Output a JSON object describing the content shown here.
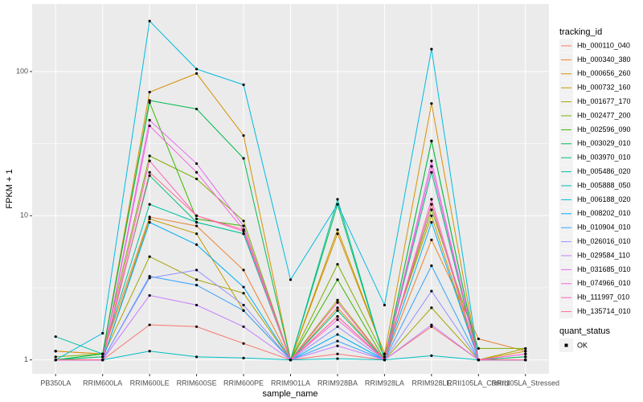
{
  "chart_data": {
    "type": "line",
    "x_label": "sample_name",
    "y_label": "FPKM + 1",
    "log_scale": true,
    "grid": true,
    "legend_title": "tracking_id",
    "point_legend_title": "quant_status",
    "point_legend_label": "OK",
    "point_color": "#000000",
    "categories": [
      "PB350LA",
      "RRIM600LA",
      "RRIM600LE",
      "RRIM600SE",
      "RRIM600PE",
      "RRIM901LA",
      "RRIM928BA",
      "RRIM928LA",
      "RRIM928LE",
      "RRII105LA_Control",
      "RRII105LA_Stressed"
    ],
    "ylim": [
      0.8,
      294
    ],
    "yticks": [
      1,
      10,
      100
    ],
    "series": [
      {
        "name": "Hb_000110_040",
        "color": "#F8766D",
        "values": [
          1,
          1,
          1.75,
          1.7,
          1.3,
          1,
          1.1,
          1,
          1.7,
          1,
          1
        ]
      },
      {
        "name": "Hb_000340_380",
        "color": "#EA8331",
        "values": [
          1.15,
          1.1,
          9.8,
          8.5,
          4.2,
          1,
          2.3,
          1,
          6.8,
          1.4,
          1.15
        ]
      },
      {
        "name": "Hb_000656_260",
        "color": "#D89000",
        "values": [
          1.15,
          1.1,
          72,
          97,
          36,
          1,
          7.5,
          1.1,
          60,
          1,
          1.15
        ]
      },
      {
        "name": "Hb_000732_160",
        "color": "#C09B00",
        "values": [
          1,
          1,
          9.5,
          7.5,
          2.2,
          1,
          8,
          1.1,
          10,
          1,
          1.05
        ]
      },
      {
        "name": "Hb_001677_170",
        "color": "#A3A500",
        "values": [
          1,
          1.05,
          5.2,
          3.6,
          2.9,
          1,
          2.6,
          1,
          2.3,
          1,
          1.2
        ]
      },
      {
        "name": "Hb_002477_200",
        "color": "#7CAE00",
        "values": [
          1.05,
          1.1,
          26,
          18,
          9.2,
          1,
          4.6,
          1.05,
          11,
          1.2,
          1.2
        ]
      },
      {
        "name": "Hb_002596_090",
        "color": "#39B600",
        "values": [
          1,
          1.1,
          61,
          9.5,
          8.5,
          1,
          3.6,
          1,
          33,
          1,
          1
        ]
      },
      {
        "name": "Hb_003029_010",
        "color": "#00BB4E",
        "values": [
          1,
          1.1,
          63,
          55,
          25,
          1,
          12,
          1,
          33,
          1,
          1
        ]
      },
      {
        "name": "Hb_003970_010",
        "color": "#00BF7D",
        "values": [
          1,
          1.05,
          19,
          9,
          7.5,
          1,
          2.2,
          1,
          20,
          1,
          1.05
        ]
      },
      {
        "name": "Hb_005486_020",
        "color": "#00C1A3",
        "values": [
          1.45,
          1.1,
          12,
          9,
          7.5,
          1,
          13,
          1,
          12,
          1,
          1
        ]
      },
      {
        "name": "Hb_005888_050",
        "color": "#00BFC4",
        "values": [
          1,
          1,
          1.15,
          1.05,
          1.03,
          1,
          1.02,
          1,
          1.07,
          1,
          1
        ]
      },
      {
        "name": "Hb_006188_020",
        "color": "#00BAE0",
        "values": [
          1,
          1.53,
          224,
          104,
          81,
          3.6,
          12,
          2.4,
          143,
          1,
          1
        ]
      },
      {
        "name": "Hb_008202_010",
        "color": "#00B0F6",
        "values": [
          1,
          1,
          9,
          6.3,
          3.2,
          1,
          1.5,
          1,
          9,
          1,
          1
        ]
      },
      {
        "name": "Hb_010904_010",
        "color": "#35A2FF",
        "values": [
          1,
          1,
          3.8,
          3.3,
          2.2,
          1,
          1.35,
          1,
          4.5,
          1,
          1
        ]
      },
      {
        "name": "Hb_026016_010",
        "color": "#9590FF",
        "values": [
          1,
          1,
          3.7,
          4.2,
          2.4,
          1,
          1.7,
          1,
          3,
          1,
          1
        ]
      },
      {
        "name": "Hb_029584_110",
        "color": "#C77CFF",
        "values": [
          1,
          1,
          2.8,
          2.4,
          1.7,
          1,
          1.25,
          1,
          1.75,
          1,
          1
        ]
      },
      {
        "name": "Hb_031685_010",
        "color": "#E76BF3",
        "values": [
          1,
          1,
          46,
          23,
          8.5,
          1,
          2,
          1,
          24,
          1,
          1.1
        ]
      },
      {
        "name": "Hb_074966_010",
        "color": "#FA62DB",
        "values": [
          1,
          1,
          42,
          20,
          8,
          1,
          1.9,
          1,
          22,
          1,
          1.1
        ]
      },
      {
        "name": "Hb_111997_010",
        "color": "#FF62BC",
        "values": [
          1,
          1,
          24,
          10,
          7.8,
          1,
          2.5,
          1,
          13,
          1,
          1
        ]
      },
      {
        "name": "Hb_135714_010",
        "color": "#FF6C91",
        "values": [
          1,
          1,
          20,
          10,
          8,
          1,
          2,
          1,
          12,
          1,
          1
        ]
      }
    ]
  }
}
